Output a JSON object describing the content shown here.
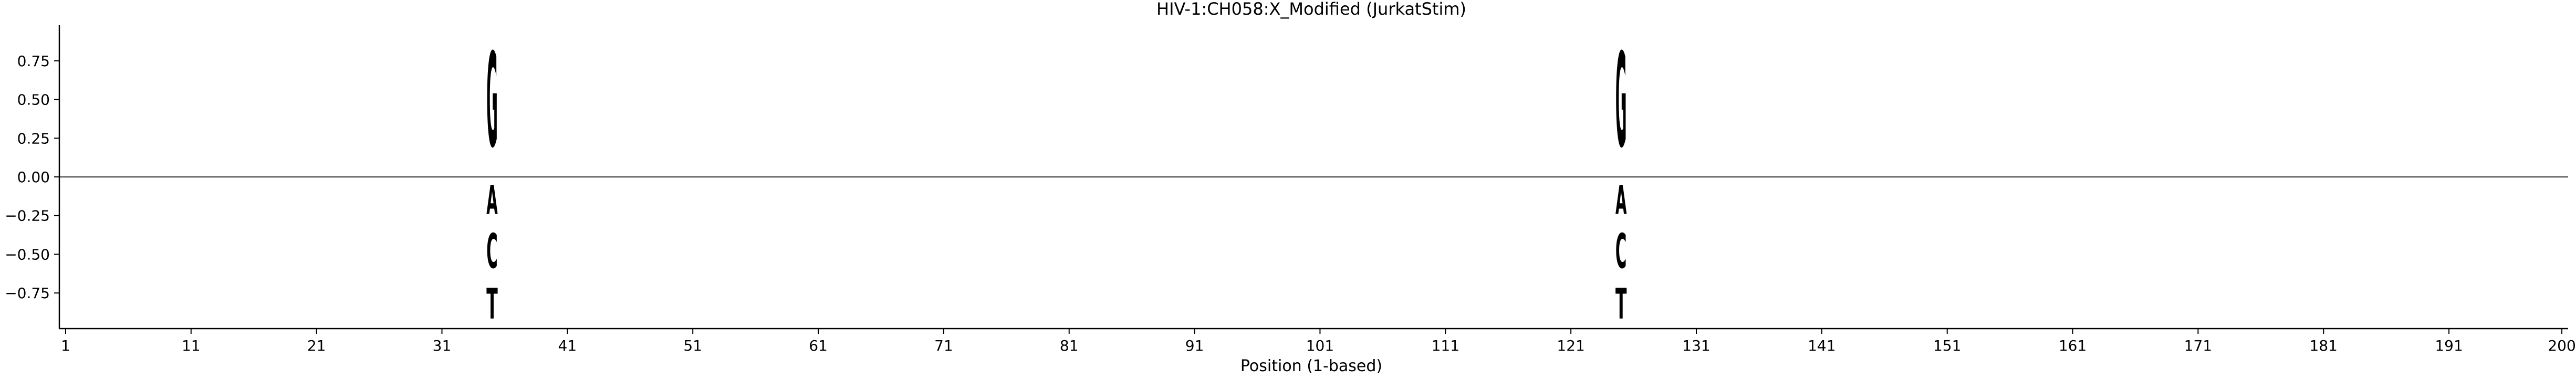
{
  "chart_data": {
    "type": "sequence-logo",
    "title": "HIV-1:CH058:X_Modified  (JurkatStim)",
    "xlabel": "Position (1-based)",
    "ylabel": "",
    "xlim": [
      0.5,
      200.5
    ],
    "ylim": [
      -0.98,
      0.98
    ],
    "xticks": [
      1,
      11,
      21,
      31,
      41,
      51,
      61,
      71,
      81,
      91,
      101,
      111,
      121,
      131,
      141,
      151,
      161,
      171,
      181,
      191,
      200
    ],
    "yticks": [
      -0.75,
      -0.5,
      -0.25,
      0.0,
      0.25,
      0.5,
      0.75
    ],
    "ytick_labels": [
      "−0.75",
      "−0.50",
      "−0.25",
      "0.00",
      "0.25",
      "0.50",
      "0.75"
    ],
    "zero_line": true,
    "grid": false,
    "colors": {
      "A": "#ff0000",
      "C": "#0000ff",
      "G": "#ffa500",
      "T": "#008000",
      "axis": "#000000",
      "zero_line": "#555555"
    },
    "columns": [
      {
        "position": 35,
        "letters": [
          {
            "base": "G",
            "bottom": 0.0,
            "top": 0.98
          },
          {
            "base": "A",
            "bottom": -0.3,
            "top": 0.0
          },
          {
            "base": "C",
            "bottom": -0.66,
            "top": -0.3
          },
          {
            "base": "T",
            "bottom": -0.98,
            "top": -0.66
          }
        ]
      },
      {
        "position": 125,
        "letters": [
          {
            "base": "G",
            "bottom": 0.0,
            "top": 0.98
          },
          {
            "base": "A",
            "bottom": -0.3,
            "top": 0.0
          },
          {
            "base": "C",
            "bottom": -0.66,
            "top": -0.3
          },
          {
            "base": "T",
            "bottom": -0.98,
            "top": -0.66
          }
        ]
      }
    ]
  }
}
